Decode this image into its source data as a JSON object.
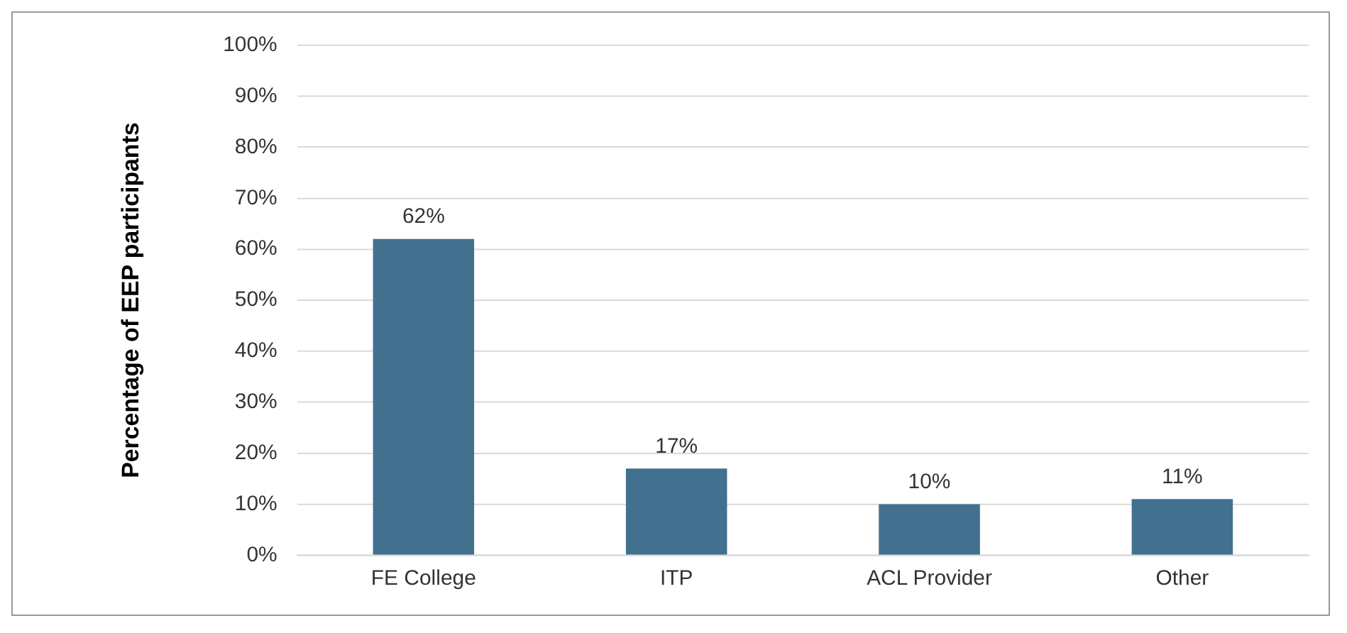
{
  "chart_data": {
    "type": "bar",
    "ylabel": "Percentage of EEP participants",
    "categories": [
      "FE College",
      "ITP",
      "ACL Provider",
      "Other"
    ],
    "values": [
      62,
      17,
      10,
      11
    ],
    "value_labels": [
      "62%",
      "17%",
      "10%",
      "11%"
    ],
    "color": "#41718f",
    "ylim": [
      0,
      100
    ],
    "yticks": [
      {
        "value": 0,
        "label": "0%"
      },
      {
        "value": 10,
        "label": "10%"
      },
      {
        "value": 20,
        "label": "20%"
      },
      {
        "value": 30,
        "label": "30%"
      },
      {
        "value": 40,
        "label": "40%"
      },
      {
        "value": 50,
        "label": "50%"
      },
      {
        "value": 60,
        "label": "60%"
      },
      {
        "value": 70,
        "label": "70%"
      },
      {
        "value": 80,
        "label": "80%"
      },
      {
        "value": 90,
        "label": "90%"
      },
      {
        "value": 100,
        "label": "100%"
      }
    ],
    "grid": "y",
    "legend": false
  }
}
